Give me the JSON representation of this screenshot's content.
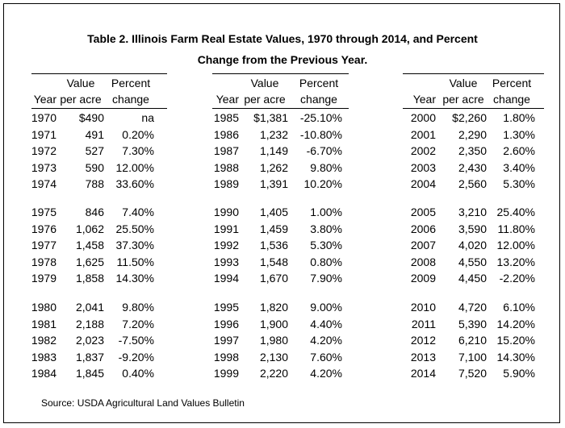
{
  "title_line1": "Table 2.  Illinois Farm Real Estate Values, 1970 through 2014, and Percent",
  "title_line2": "Change from the Previous Year.",
  "headers": {
    "year": "Year",
    "value_top": "Value",
    "value_bottom": "per acre",
    "pct_top": "Percent",
    "pct_bottom": "change"
  },
  "columns": [
    {
      "rows": [
        {
          "year": "1970",
          "value": "$490",
          "pct": "na"
        },
        {
          "year": "1971",
          "value": "491",
          "pct": "0.20%"
        },
        {
          "year": "1972",
          "value": "527",
          "pct": "7.30%"
        },
        {
          "year": "1973",
          "value": "590",
          "pct": "12.00%"
        },
        {
          "year": "1974",
          "value": "788",
          "pct": "33.60%"
        },
        {
          "year": "1975",
          "value": "846",
          "pct": "7.40%"
        },
        {
          "year": "1976",
          "value": "1,062",
          "pct": "25.50%"
        },
        {
          "year": "1977",
          "value": "1,458",
          "pct": "37.30%"
        },
        {
          "year": "1978",
          "value": "1,625",
          "pct": "11.50%"
        },
        {
          "year": "1979",
          "value": "1,858",
          "pct": "14.30%"
        },
        {
          "year": "1980",
          "value": "2,041",
          "pct": "9.80%"
        },
        {
          "year": "1981",
          "value": "2,188",
          "pct": "7.20%"
        },
        {
          "year": "1982",
          "value": "2,023",
          "pct": "-7.50%"
        },
        {
          "year": "1983",
          "value": "1,837",
          "pct": "-9.20%"
        },
        {
          "year": "1984",
          "value": "1,845",
          "pct": "0.40%"
        }
      ]
    },
    {
      "rows": [
        {
          "year": "1985",
          "value": "$1,381",
          "pct": "-25.10%"
        },
        {
          "year": "1986",
          "value": "1,232",
          "pct": "-10.80%"
        },
        {
          "year": "1987",
          "value": "1,149",
          "pct": "-6.70%"
        },
        {
          "year": "1988",
          "value": "1,262",
          "pct": "9.80%"
        },
        {
          "year": "1989",
          "value": "1,391",
          "pct": "10.20%"
        },
        {
          "year": "1990",
          "value": "1,405",
          "pct": "1.00%"
        },
        {
          "year": "1991",
          "value": "1,459",
          "pct": "3.80%"
        },
        {
          "year": "1992",
          "value": "1,536",
          "pct": "5.30%"
        },
        {
          "year": "1993",
          "value": "1,548",
          "pct": "0.80%"
        },
        {
          "year": "1994",
          "value": "1,670",
          "pct": "7.90%"
        },
        {
          "year": "1995",
          "value": "1,820",
          "pct": "9.00%"
        },
        {
          "year": "1996",
          "value": "1,900",
          "pct": "4.40%"
        },
        {
          "year": "1997",
          "value": "1,980",
          "pct": "4.20%"
        },
        {
          "year": "1998",
          "value": "2,130",
          "pct": "7.60%"
        },
        {
          "year": "1999",
          "value": "2,220",
          "pct": "4.20%"
        }
      ]
    },
    {
      "rows": [
        {
          "year": "2000",
          "value": "$2,260",
          "pct": "1.80%"
        },
        {
          "year": "2001",
          "value": "2,290",
          "pct": "1.30%"
        },
        {
          "year": "2002",
          "value": "2,350",
          "pct": "2.60%"
        },
        {
          "year": "2003",
          "value": "2,430",
          "pct": "3.40%"
        },
        {
          "year": "2004",
          "value": "2,560",
          "pct": "5.30%"
        },
        {
          "year": "2005",
          "value": "3,210",
          "pct": "25.40%"
        },
        {
          "year": "2006",
          "value": "3,590",
          "pct": "11.80%"
        },
        {
          "year": "2007",
          "value": "4,020",
          "pct": "12.00%"
        },
        {
          "year": "2008",
          "value": "4,550",
          "pct": "13.20%"
        },
        {
          "year": "2009",
          "value": "4,450",
          "pct": "-2.20%"
        },
        {
          "year": "2010",
          "value": "4,720",
          "pct": "6.10%"
        },
        {
          "year": "2011",
          "value": "5,390",
          "pct": "14.20%"
        },
        {
          "year": "2012",
          "value": "6,210",
          "pct": "15.20%"
        },
        {
          "year": "2013",
          "value": "7,100",
          "pct": "14.30%"
        },
        {
          "year": "2014",
          "value": "7,520",
          "pct": "5.90%"
        }
      ]
    }
  ],
  "source": "Source:  USDA Agricultural Land Values Bulletin"
}
